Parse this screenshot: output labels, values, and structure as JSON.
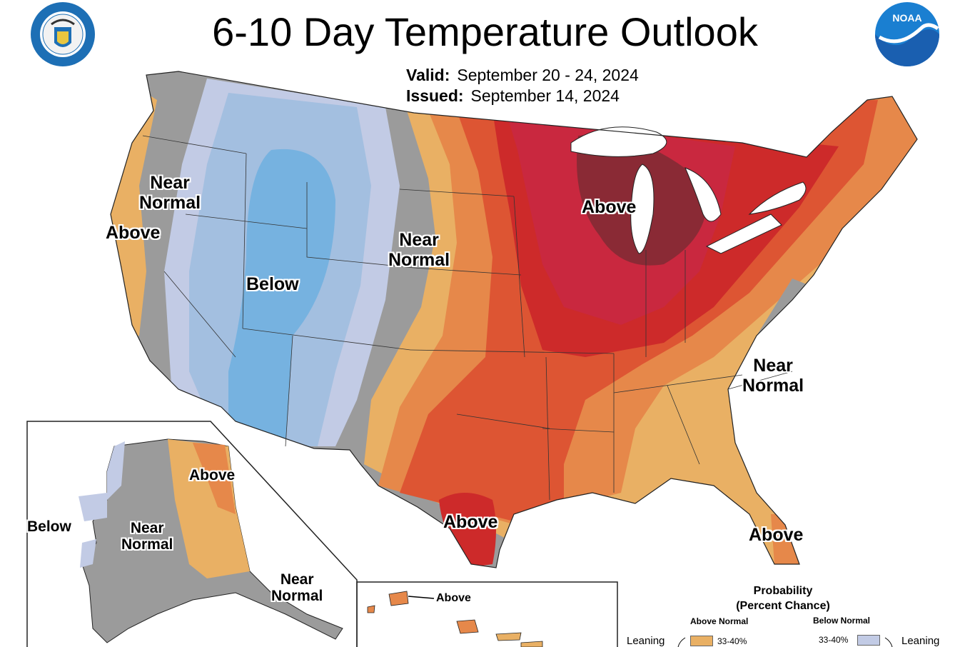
{
  "header": {
    "title": "6-10 Day Temperature Outlook",
    "valid_label": "Valid:",
    "valid_value": "September 20 - 24, 2024",
    "issued_label": "Issued:",
    "issued_value": "September 14, 2024"
  },
  "logos": {
    "commerce_seal": "dept-of-commerce-seal",
    "commerce_seal_text": "DEPARTMENT OF COMMERCE · UNITED STATES OF AMERICA",
    "noaa": "noaa-logo",
    "noaa_text": "NOAA"
  },
  "map_labels": {
    "west_near_normal": "Near\nNormal",
    "west_above": "Above",
    "rockies_below": "Below",
    "plains_near_normal": "Near\nNormal",
    "midwest_above": "Above",
    "texas_above": "Above",
    "southeast_near_normal": "Near\nNormal",
    "florida_above": "Above",
    "alaska_above": "Above",
    "alaska_below": "Below",
    "alaska_near_normal": "Near\nNormal",
    "alaska_se_near_normal": "Near\nNormal",
    "hawaii_above": "Above"
  },
  "legend": {
    "title_line1": "Probability",
    "title_line2": "(Percent Chance)",
    "above_header": "Above Normal",
    "below_header": "Below Normal",
    "above_pct": "33-40%",
    "below_pct": "33-40%",
    "leaning_left": "Leaning",
    "leaning_right": "Leaning"
  },
  "colors": {
    "near_normal": "#9b9b9b",
    "below_33_40": "#c2cbe5",
    "below_40_50": "#a3bfe0",
    "below_50_60": "#76b2e0",
    "above_33_40": "#e9b064",
    "above_40_50": "#e6884a",
    "above_50_60": "#dd5533",
    "above_60_70": "#cd2a2a",
    "above_70_80": "#c9283f",
    "above_80_90": "#8a2a35"
  }
}
